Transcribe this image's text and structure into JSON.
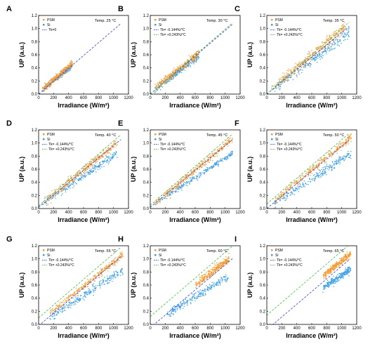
{
  "chart_data": [
    {
      "panel": "A",
      "type": "scatter",
      "temp_label": "Temp. 25 °C",
      "xlabel": "Irradiance (W/m²)",
      "ylabel": "UP (a.u.)",
      "xlim": [
        0,
        1200
      ],
      "ylim": [
        0,
        1.2
      ],
      "xticks": [
        "0",
        "200",
        "400",
        "600",
        "800",
        "1000",
        "1200"
      ],
      "yticks": [
        "0.0",
        "0.2",
        "0.4",
        "0.6",
        "0.8",
        "1.0",
        "1.2"
      ],
      "psm": {
        "name": "PSM",
        "color": "#f39c34",
        "x_range": [
          50,
          450
        ],
        "slope": 0.00098,
        "intercept": 0.02,
        "noise": 0.025
      },
      "si": {
        "name": "Si",
        "color": "#3fa0e6",
        "x_range": [
          50,
          450
        ],
        "slope": 0.00092,
        "intercept": 0.02,
        "noise": 0.02
      },
      "lines": [
        {
          "name": "Tk=0",
          "color": "#3a3adb",
          "slope": 0.00098,
          "intercept": 0.0
        }
      ]
    },
    {
      "panel": "B",
      "type": "scatter",
      "temp_label": "Temp. 30 °C",
      "xlabel": "Irradiance (W/m²)",
      "ylabel": "UP (a.u.)",
      "xlim": [
        0,
        1200
      ],
      "ylim": [
        0,
        1.2
      ],
      "xticks": [
        "0",
        "200",
        "400",
        "600",
        "800",
        "1000",
        "1200"
      ],
      "yticks": [
        "0.0",
        "0.2",
        "0.4",
        "0.6",
        "0.8",
        "1.0",
        "1.2"
      ],
      "psm": {
        "name": "PSM",
        "color": "#f39c34",
        "x_range": [
          60,
          650
        ],
        "slope": 0.00092,
        "intercept": 0.03,
        "noise": 0.03
      },
      "si": {
        "name": "Si",
        "color": "#3fa0e6",
        "x_range": [
          60,
          650
        ],
        "slope": 0.00085,
        "intercept": 0.02,
        "noise": 0.025
      },
      "lines": [
        {
          "name": "Tk= -0.144%/°C",
          "color": "#3a3adb",
          "slope": 0.00097,
          "intercept": 0.0
        },
        {
          "name": "Tk= +0.243%/°C",
          "color": "#3bbf3b",
          "slope": 0.00099,
          "intercept": 0.0
        }
      ]
    },
    {
      "panel": "C",
      "type": "scatter",
      "temp_label": "Temp. 35 °C",
      "xlabel": "Irradiance (W/m²)",
      "ylabel": "UP (a.u.)",
      "xlim": [
        0,
        1200
      ],
      "ylim": [
        0,
        1.2
      ],
      "xticks": [
        "0",
        "200",
        "400",
        "600",
        "800",
        "1000",
        "1200"
      ],
      "yticks": [
        "0.0",
        "0.2",
        "0.4",
        "0.6",
        "0.8",
        "1.0",
        "1.2"
      ],
      "psm": {
        "name": "PSM",
        "color": "#f39c34",
        "x_range": [
          60,
          1050
        ],
        "slope": 0.00096,
        "intercept": 0.02,
        "noise": 0.035
      },
      "si": {
        "name": "Si",
        "color": "#3fa0e6",
        "x_range": [
          60,
          1100
        ],
        "slope": 0.00085,
        "intercept": 0.0,
        "noise": 0.04
      },
      "lines": [
        {
          "name": "Tk= -0.144%/°C",
          "color": "#3a3adb",
          "slope": 0.00094,
          "intercept": 0.0
        },
        {
          "name": "Tk= +0.243%/°C",
          "color": "#3bbf3b",
          "slope": 0.001,
          "intercept": 0.0
        }
      ]
    },
    {
      "panel": "D",
      "type": "scatter",
      "temp_label": "Temp. 40 °C",
      "xlabel": "Irradiance (W/m²)",
      "ylabel": "UP (a.u.)",
      "xlim": [
        0,
        1200
      ],
      "ylim": [
        0,
        1.2
      ],
      "xticks": [
        "0",
        "200",
        "400",
        "600",
        "800",
        "1000",
        "1200"
      ],
      "yticks": [
        "0.0",
        "0.2",
        "0.4",
        "0.6",
        "0.8",
        "1.0",
        "1.2"
      ],
      "psm": {
        "name": "PSM",
        "color": "#f39c34",
        "x_range": [
          60,
          1050
        ],
        "slope": 0.00093,
        "intercept": 0.03,
        "noise": 0.03
      },
      "si": {
        "name": "Si",
        "color": "#3fa0e6",
        "x_range": [
          60,
          1050
        ],
        "slope": 0.00078,
        "intercept": 0.03,
        "noise": 0.03
      },
      "lines": [
        {
          "name": "Tk= -0.144%/°C",
          "color": "#3a3adb",
          "slope": 0.00094,
          "intercept": 0.02
        },
        {
          "name": "Tk= +0.243%/°C",
          "color": "#3bbf3b",
          "slope": 0.00099,
          "intercept": 0.04
        }
      ]
    },
    {
      "panel": "E",
      "type": "scatter",
      "temp_label": "Temp. 45 °C",
      "xlabel": "Irradiance (W/m²)",
      "ylabel": "UP (a.u.)",
      "xlim": [
        0,
        1200
      ],
      "ylim": [
        0,
        1.2
      ],
      "xticks": [
        "0",
        "200",
        "400",
        "600",
        "800",
        "1000",
        "1200"
      ],
      "yticks": [
        "0.0",
        "0.2",
        "0.4",
        "0.6",
        "0.8",
        "1.0",
        "1.2"
      ],
      "psm": {
        "name": "PSM",
        "color": "#f39c34",
        "x_range": [
          60,
          1100
        ],
        "slope": 0.00095,
        "intercept": 0.02,
        "noise": 0.025
      },
      "si": {
        "name": "Si",
        "color": "#3fa0e6",
        "x_range": [
          60,
          1100
        ],
        "slope": 0.00075,
        "intercept": 0.02,
        "noise": 0.02
      },
      "lines": [
        {
          "name": "Tk= -0.144%/°C",
          "color": "#3a3adb",
          "slope": 0.00094,
          "intercept": 0.02
        },
        {
          "name": "Tk= +0.243%/°C",
          "color": "#3bbf3b",
          "slope": 0.00099,
          "intercept": 0.05
        }
      ]
    },
    {
      "panel": "F",
      "type": "scatter",
      "temp_label": "Temp. 50 °C",
      "xlabel": "Irradiance (W/m²)",
      "ylabel": "UP (a.u.)",
      "xlim": [
        0,
        1200
      ],
      "ylim": [
        0,
        1.2
      ],
      "xticks": [
        "0",
        "200",
        "400",
        "600",
        "800",
        "1000",
        "1200"
      ],
      "yticks": [
        "0.0",
        "0.2",
        "0.4",
        "0.6",
        "0.8",
        "1.0",
        "1.2"
      ],
      "psm": {
        "name": "PSM",
        "color": "#f39c34",
        "x_range": [
          100,
          1130
        ],
        "slope": 0.00094,
        "intercept": 0.03,
        "noise": 0.03
      },
      "si": {
        "name": "Si",
        "color": "#3fa0e6",
        "x_range": [
          100,
          1130
        ],
        "slope": 0.00075,
        "intercept": 0.0,
        "noise": 0.03
      },
      "lines": [
        {
          "name": "Tk= -0.144%/°C",
          "color": "#3a3adb",
          "slope": 0.00095,
          "intercept": 0.0
        },
        {
          "name": "Tk= +0.243%/°C",
          "color": "#3bbf3b",
          "slope": 0.00098,
          "intercept": 0.07
        }
      ]
    },
    {
      "panel": "G",
      "type": "scatter",
      "temp_label": "Temp. 55 °C",
      "xlabel": "Irradiance (W/m²)",
      "ylabel": "UP (a.u.)",
      "xlim": [
        0,
        1200
      ],
      "ylim": [
        0,
        1.2
      ],
      "xticks": [
        "0",
        "200",
        "400",
        "600",
        "800",
        "1000",
        "1200"
      ],
      "yticks": [
        "0.0",
        "0.2",
        "0.4",
        "0.6",
        "0.8",
        "1.0",
        "1.2"
      ],
      "psm": {
        "name": "PSM",
        "color": "#f39c34",
        "x_range": [
          150,
          1130
        ],
        "slope": 0.00092,
        "intercept": 0.03,
        "noise": 0.025
      },
      "si": {
        "name": "Si",
        "color": "#3fa0e6",
        "x_range": [
          150,
          1130
        ],
        "slope": 0.00074,
        "intercept": 0.0,
        "noise": 0.03
      },
      "lines": [
        {
          "name": "Tk= -0.144%/°C",
          "color": "#3a3adb",
          "slope": 0.00096,
          "intercept": -0.02
        },
        {
          "name": "Tk= +0.243%/°C",
          "color": "#3bbf3b",
          "slope": 0.00098,
          "intercept": 0.1
        }
      ]
    },
    {
      "panel": "H",
      "type": "scatter",
      "temp_label": "Temp. 60 °C",
      "xlabel": "Irradiance (W/m²)",
      "ylabel": "UP (a.u.)",
      "xlim": [
        0,
        1200
      ],
      "ylim": [
        0,
        1.2
      ],
      "xticks": [
        "0",
        "200",
        "400",
        "600",
        "800",
        "1000",
        "1200"
      ],
      "yticks": [
        "0.0",
        "0.2",
        "0.4",
        "0.6",
        "0.8",
        "1.0",
        "1.2"
      ],
      "psm": {
        "name": "PSM",
        "color": "#f39c34",
        "x_range": [
          600,
          1050
        ],
        "slope": 0.0009,
        "intercept": 0.06,
        "noise": 0.03
      },
      "si": {
        "name": "Si",
        "color": "#3fa0e6",
        "x_range": [
          200,
          1050
        ],
        "slope": 0.0007,
        "intercept": 0.0,
        "noise": 0.03
      },
      "lines": [
        {
          "name": "Tk= -0.144%/°C",
          "color": "#3a3adb",
          "slope": 0.00096,
          "intercept": -0.05
        },
        {
          "name": "Tk= +0.243%/°C",
          "color": "#3bbf3b",
          "slope": 0.00098,
          "intercept": 0.12
        }
      ]
    },
    {
      "panel": "I",
      "type": "scatter",
      "temp_label": "Temp. 65 °C",
      "xlabel": "Irradiance (W/m²)",
      "ylabel": "UP (a.u.)",
      "xlim": [
        0,
        1200
      ],
      "ylim": [
        0,
        1.2
      ],
      "xticks": [
        "0",
        "200",
        "400",
        "600",
        "800",
        "1000",
        "1200"
      ],
      "yticks": [
        "0.0",
        "0.2",
        "0.4",
        "0.6",
        "0.8",
        "1.0",
        "1.2"
      ],
      "psm": {
        "name": "PSM",
        "color": "#f39c34",
        "x_range": [
          750,
          1120
        ],
        "slope": 0.00092,
        "intercept": 0.05,
        "noise": 0.025
      },
      "si": {
        "name": "Si",
        "color": "#3fa0e6",
        "x_range": [
          750,
          1120
        ],
        "slope": 0.00075,
        "intercept": 0.0,
        "noise": 0.025
      },
      "lines": [
        {
          "name": "Tk= -0.144%/°C",
          "color": "#3a3adb",
          "slope": 0.00097,
          "intercept": -0.08
        },
        {
          "name": "Tk= +0.243%/°C",
          "color": "#3bbf3b",
          "slope": 0.00098,
          "intercept": 0.14
        }
      ]
    }
  ]
}
